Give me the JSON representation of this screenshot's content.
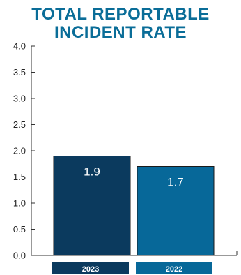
{
  "chart_data": {
    "type": "bar",
    "title_lines": [
      "TOTAL REPORTABLE",
      "INCIDENT RATE"
    ],
    "categories": [
      "2023",
      "2022"
    ],
    "values": [
      1.9,
      1.7
    ],
    "value_labels": [
      "1.9",
      "1.7"
    ],
    "ylim": [
      0,
      4.0
    ],
    "yticks": [
      "0.0",
      "0.5",
      "1.0",
      "1.5",
      "2.0",
      "2.5",
      "3.0",
      "3.5",
      "4.0"
    ],
    "colors": [
      "#0b3a5e",
      "#076899"
    ],
    "grid": false,
    "legend": "none"
  }
}
